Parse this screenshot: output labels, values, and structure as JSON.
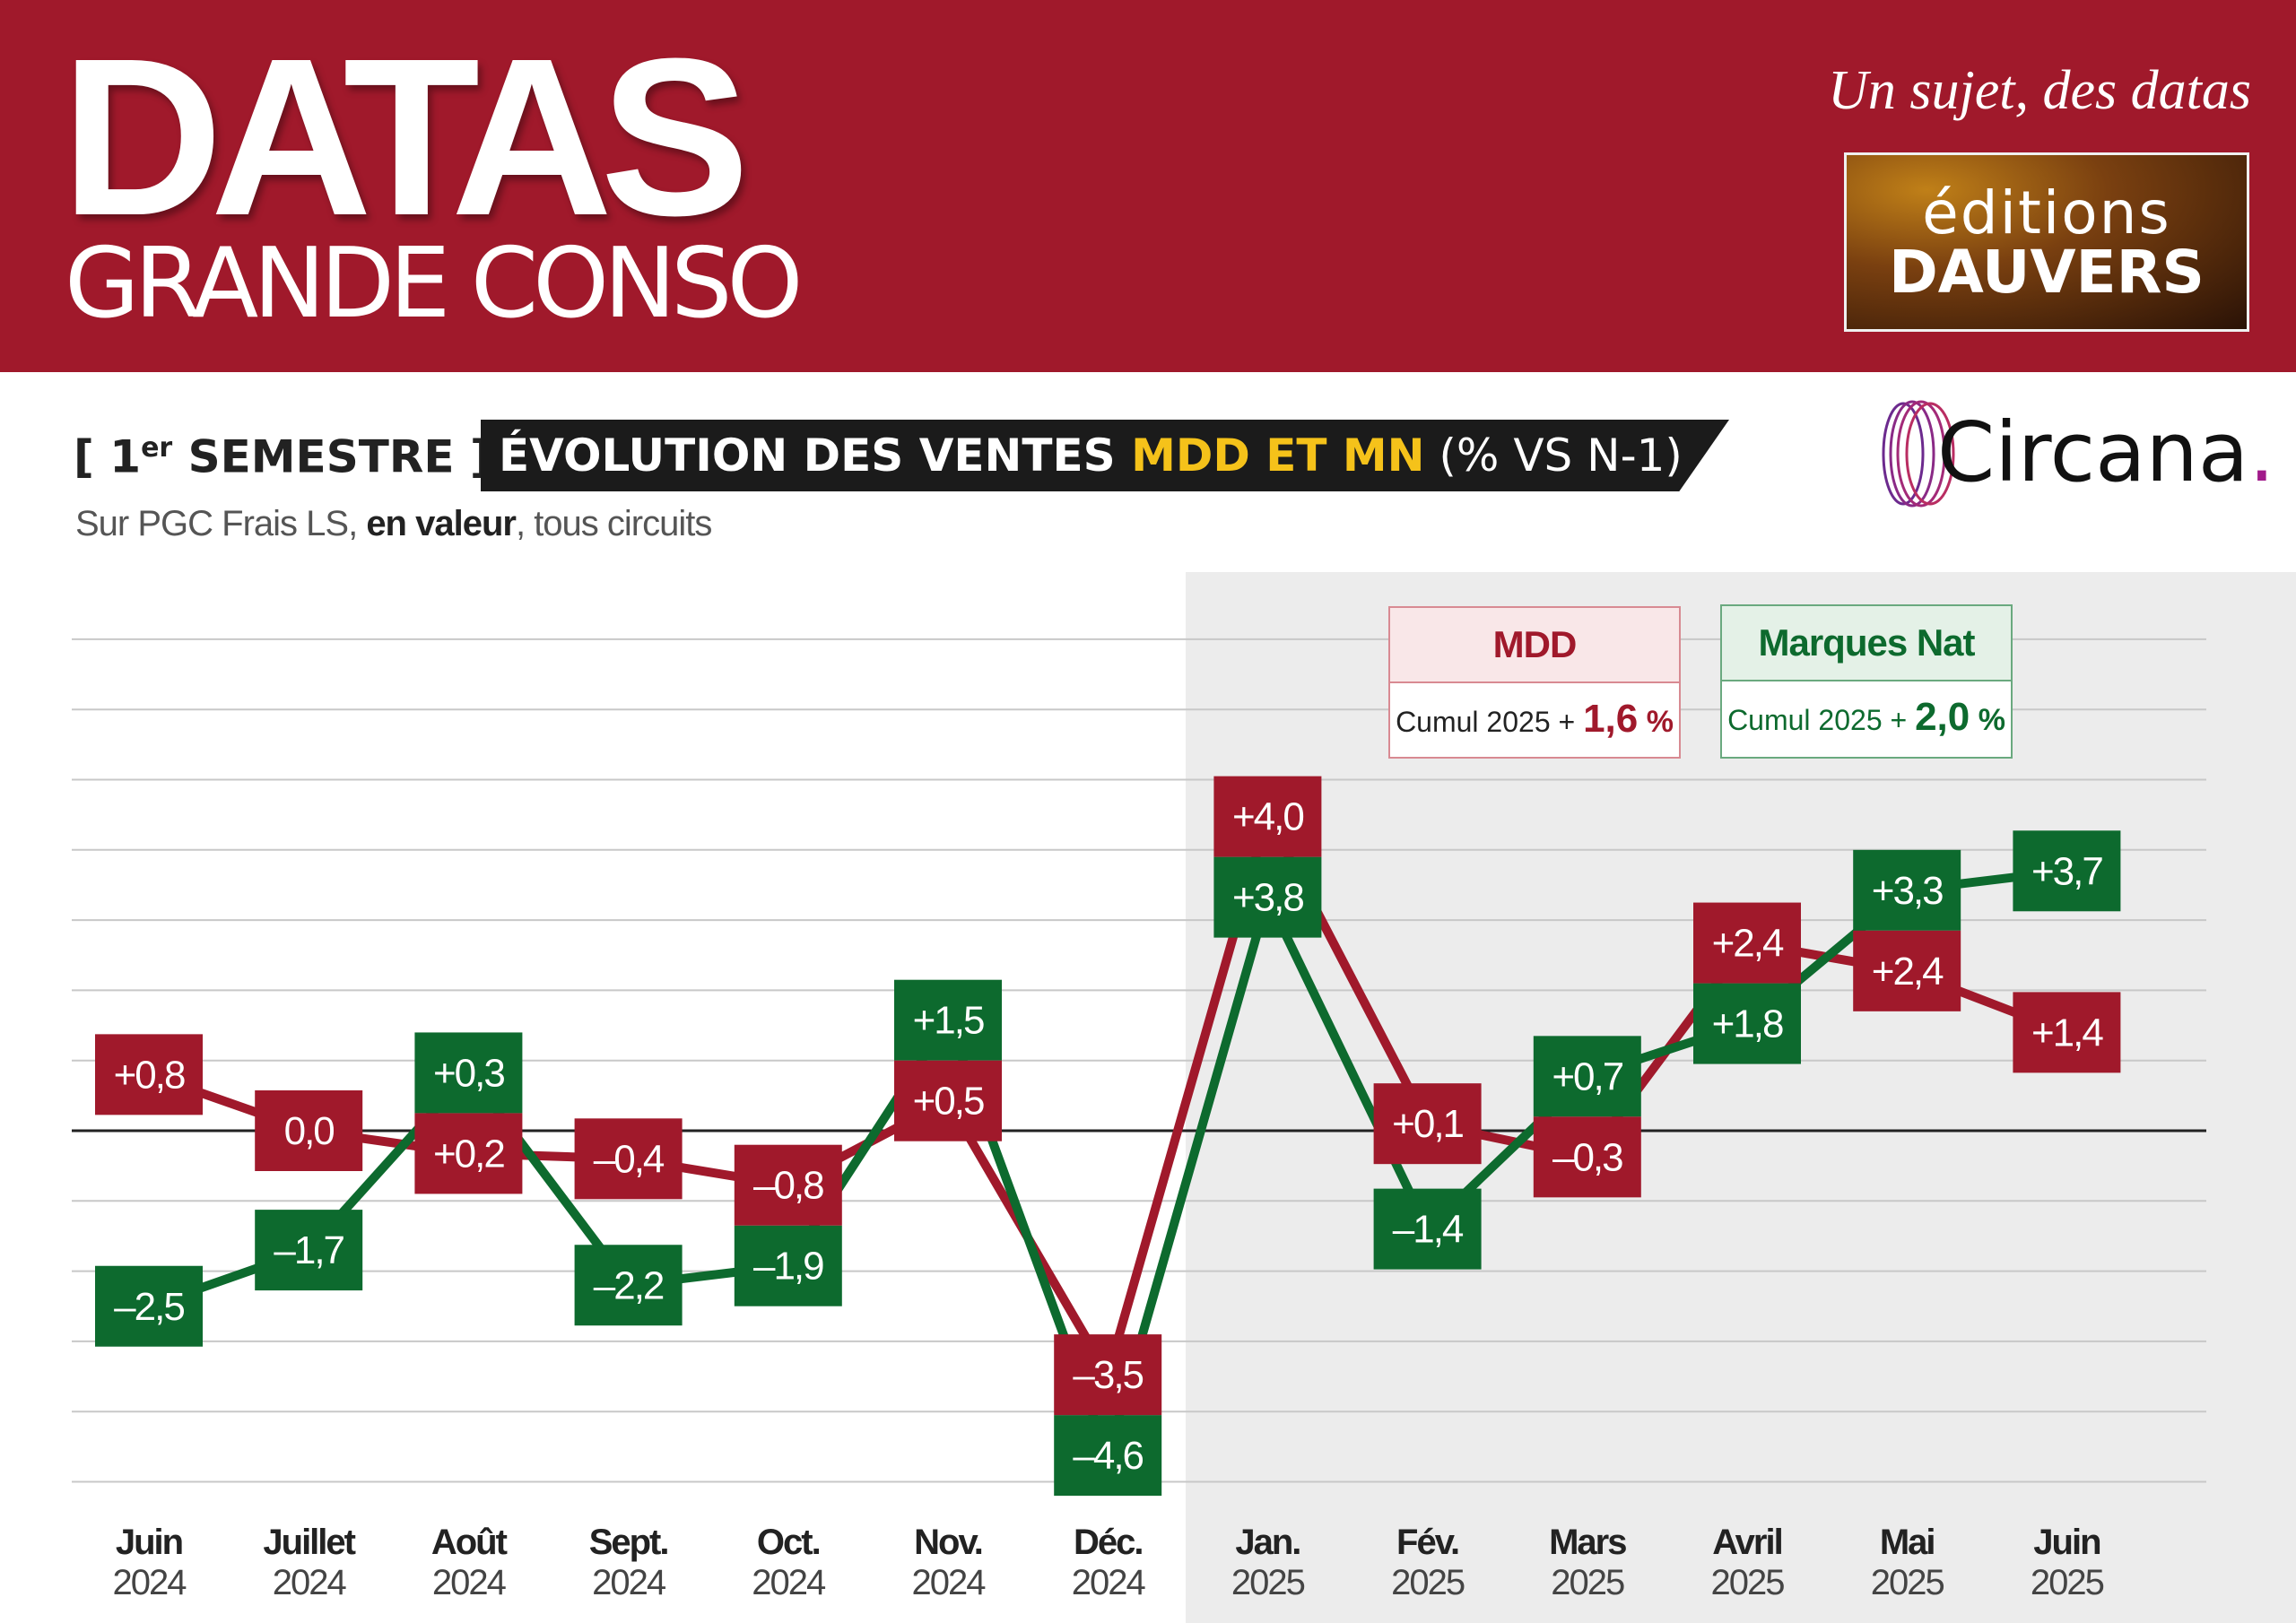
{
  "header": {
    "brand_title": "DATAS",
    "brand_subtitle": "GRANDE CONSO",
    "tagline": "Un sujet, des datas",
    "publisher_line1": "éditions",
    "publisher_line2": "DAUVERS",
    "background_color": "#a0192b"
  },
  "chart_header": {
    "period_prefix": "[ 1",
    "period_sup": "er",
    "period_suffix": " SEMESTRE ]",
    "title_main": "ÉVOLUTION DES VENTES ",
    "title_highlight": "MDD ET MN",
    "title_unit": " (% VS N-1)",
    "subtitle_prefix": "Sur PGC Frais LS, ",
    "subtitle_bold": "en valeur",
    "subtitle_suffix": ", tous circuits",
    "source_name": "Circana",
    "source_dot": "."
  },
  "legend": {
    "mdd": {
      "title": "MDD",
      "label": "Cumul 2025 + ",
      "value": "1,6",
      "unit": " %"
    },
    "mn": {
      "title": "Marques Nat",
      "label": "Cumul 2025 + ",
      "value": "2,0",
      "unit": " %"
    }
  },
  "chart_data": {
    "type": "line",
    "categories": [
      {
        "month": "Juin",
        "year": "2024"
      },
      {
        "month": "Juillet",
        "year": "2024"
      },
      {
        "month": "Août",
        "year": "2024"
      },
      {
        "month": "Sept.",
        "year": "2024"
      },
      {
        "month": "Oct.",
        "year": "2024"
      },
      {
        "month": "Nov.",
        "year": "2024"
      },
      {
        "month": "Déc.",
        "year": "2024"
      },
      {
        "month": "Jan.",
        "year": "2025"
      },
      {
        "month": "Fév.",
        "year": "2025"
      },
      {
        "month": "Mars",
        "year": "2025"
      },
      {
        "month": "Avril",
        "year": "2025"
      },
      {
        "month": "Mai",
        "year": "2025"
      },
      {
        "month": "Juin",
        "year": "2025"
      }
    ],
    "series": [
      {
        "name": "MDD",
        "color": "#a0192b",
        "values": [
          0.8,
          0.0,
          0.2,
          -0.4,
          -0.8,
          0.5,
          -3.5,
          4.0,
          0.1,
          -0.3,
          2.4,
          2.4,
          1.4
        ],
        "labels": [
          "+0,8",
          "0,0",
          "+0,2",
          "–0,4",
          "–0,8",
          "+0,5",
          "–3,5",
          "+4,0",
          "+0,1",
          "–0,3",
          "+2,4",
          "+2,4",
          "+1,4"
        ]
      },
      {
        "name": "Marques Nat",
        "color": "#0d6a2e",
        "values": [
          -2.5,
          -1.7,
          0.3,
          -2.2,
          -1.9,
          1.5,
          -4.6,
          3.8,
          -1.4,
          0.7,
          1.8,
          3.3,
          3.7
        ],
        "labels": [
          "–2,5",
          "–1,7",
          "+0,3",
          "–2,2",
          "–1,9",
          "+1,5",
          "–4,6",
          "+3,8",
          "–1,4",
          "+0,7",
          "+1,8",
          "+3,3",
          "+3,7"
        ]
      }
    ],
    "highlight_from_index": 7,
    "ylim": [
      -5,
      7
    ],
    "grid": true,
    "zero_line": true
  }
}
